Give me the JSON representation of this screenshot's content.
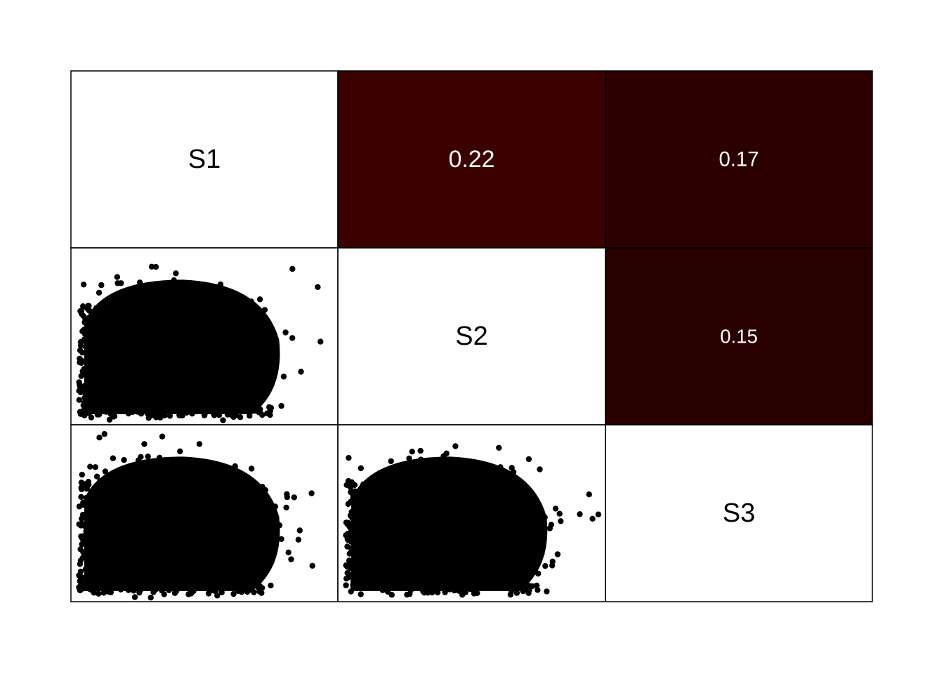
{
  "chart_data": {
    "type": "scatter-matrix",
    "variables": [
      "S1",
      "S2",
      "S3"
    ],
    "correlations": [
      {
        "row": 1,
        "col": 2,
        "pair": [
          "S1",
          "S2"
        ],
        "value": 0.22,
        "label": "0.22",
        "fill": "#3b0000"
      },
      {
        "row": 1,
        "col": 3,
        "pair": [
          "S1",
          "S3"
        ],
        "value": 0.17,
        "label": "0.17",
        "fill": "#2d0000"
      },
      {
        "row": 2,
        "col": 3,
        "pair": [
          "S2",
          "S3"
        ],
        "value": 0.15,
        "label": "0.15",
        "fill": "#280000"
      }
    ],
    "scatter_panels": [
      {
        "row": 2,
        "col": 1,
        "x": "S1",
        "y": "S2"
      },
      {
        "row": 3,
        "col": 1,
        "x": "S1",
        "y": "S3"
      },
      {
        "row": 3,
        "col": 2,
        "x": "S2",
        "y": "S3"
      }
    ],
    "colors": {
      "points": "#000000",
      "border": "#000000",
      "diagonal_bg": "#ffffff",
      "label_on_dark": "#ffffff",
      "label_on_light": "#000000"
    }
  }
}
